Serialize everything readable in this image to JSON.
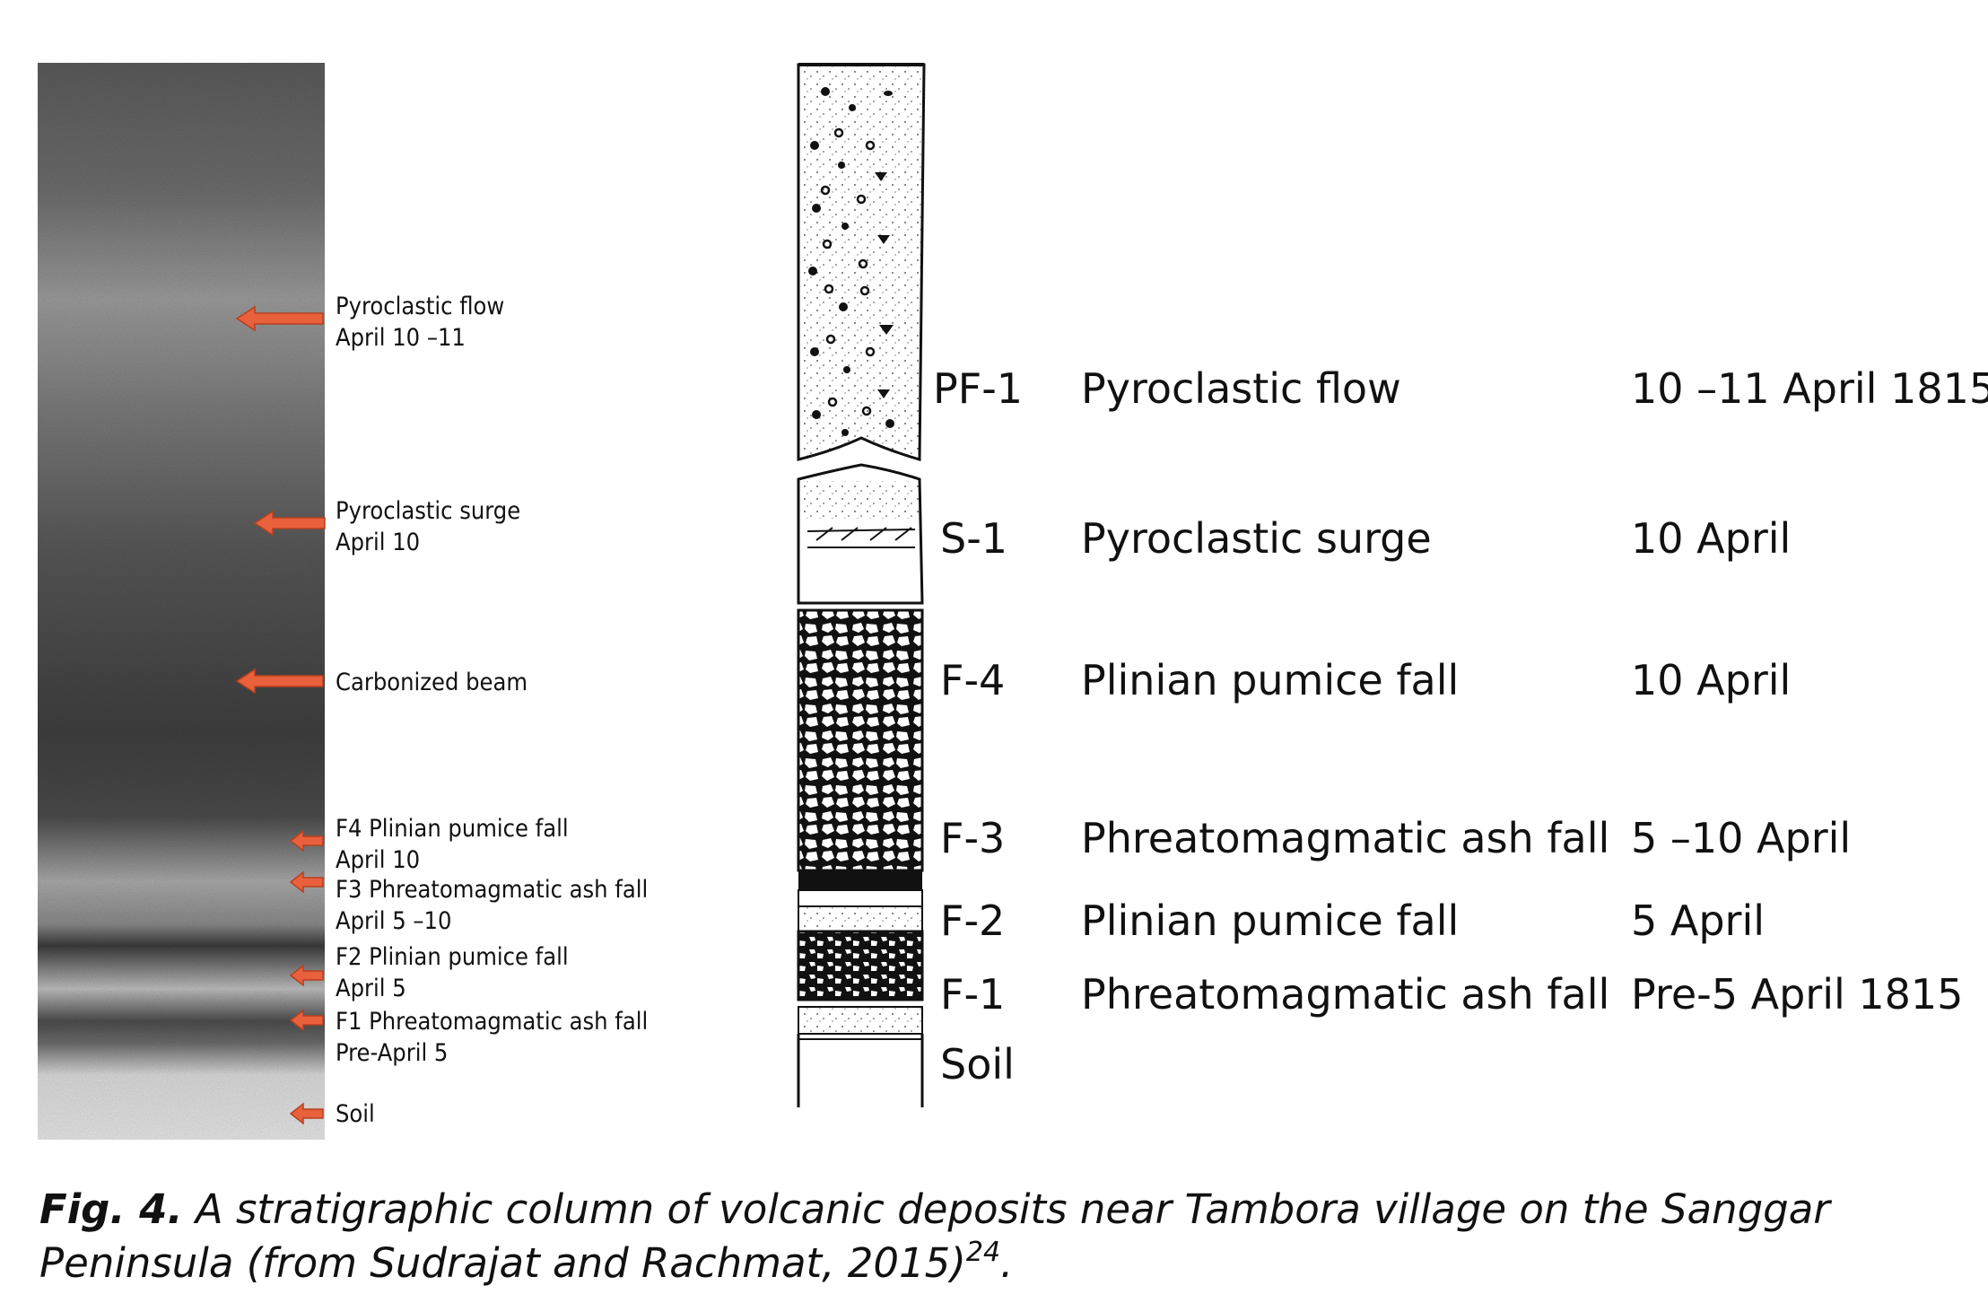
{
  "photo_annotations": [
    {
      "title": "Pyroclastic flow",
      "subtitle": "April 10 –11"
    },
    {
      "title": "Pyroclastic surge",
      "subtitle": "April 10"
    },
    {
      "title": "Carbonized beam",
      "subtitle": ""
    },
    {
      "title": "F4 Plinian pumice fall",
      "subtitle": "April 10"
    },
    {
      "title": "F3 Phreatomagmatic ash fall",
      "subtitle": "April 5 –10"
    },
    {
      "title": "F2 Plinian pumice fall",
      "subtitle": "April 5"
    },
    {
      "title": "F1 Phreatomagmatic ash fall",
      "subtitle": "Pre-April 5"
    },
    {
      "title": "Soil",
      "subtitle": ""
    }
  ],
  "column_rows": [
    {
      "code": "PF-1",
      "description": "Pyroclastic flow",
      "date": "10 –11 April 1815"
    },
    {
      "code": "S-1",
      "description": "Pyroclastic surge",
      "date": "10 April"
    },
    {
      "code": "F-4",
      "description": "Plinian pumice fall",
      "date": "10 April"
    },
    {
      "code": "F-3",
      "description": "Phreatomagmatic ash fall",
      "date": "5 –10 April"
    },
    {
      "code": "F-2",
      "description": "Plinian pumice fall",
      "date": "5 April"
    },
    {
      "code": "F-1",
      "description": "Phreatomagmatic ash fall",
      "date": "Pre-5 April 1815"
    },
    {
      "code": "Soil",
      "description": "",
      "date": ""
    }
  ],
  "caption": {
    "label": "Fig. 4.",
    "text": " A stratigraphic column of volcanic deposits near Tambora village on the Sanggar Peninsula (from Sudrajat and Rachmat, 2015)",
    "reference": "24",
    "end": "."
  },
  "colors": {
    "arrow": "#e8603c",
    "arrow_outline": "#b8401e",
    "ink": "#111111"
  }
}
